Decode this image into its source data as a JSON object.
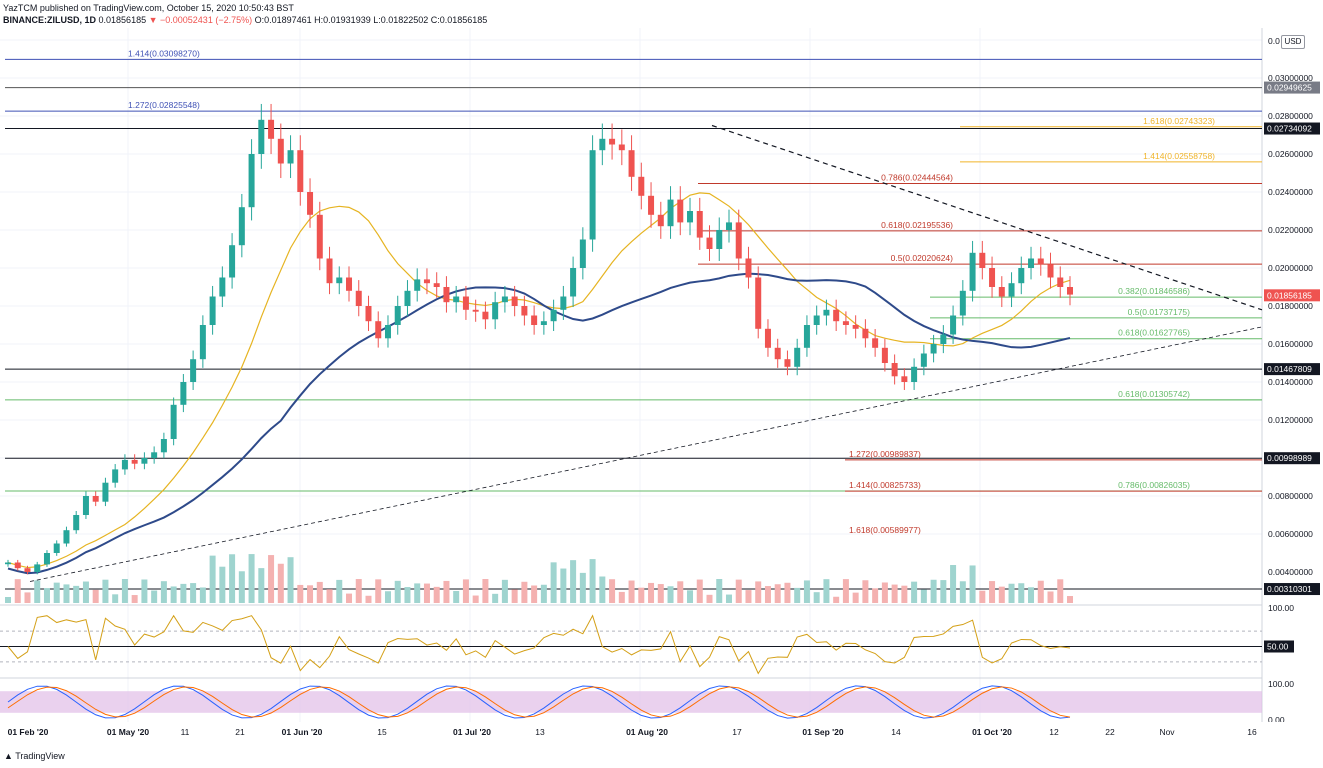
{
  "header": {
    "line1": "YazTCM published on TradingView.com, October 15, 2020 10:50:43 BST",
    "symbol": "BINANCE:ZILUSD, 1D",
    "price": "0.01856185",
    "change": "▼ −0.00052431 (−2.75%)",
    "ohlc": "O:0.01897461 H:0.01931939 L:0.01822502 C:0.01856185"
  },
  "currency_button": "USD",
  "brand": "TradingView",
  "colors": {
    "up": "#26a69a",
    "down": "#ef5350",
    "ma_yellow": "#e6b422",
    "ma_blue": "#2e4a8a",
    "rsi": "#d4a017",
    "stoch_band": "#e1bee7"
  },
  "chart_data": {
    "type": "candlestick",
    "symbol": "ZILUSD",
    "exchange": "BINANCE",
    "timeframe": "1D",
    "y_ticks": [
      "0.03000000",
      "0.02800000",
      "0.02600000",
      "0.02400000",
      "0.02200000",
      "0.02000000",
      "0.01800000",
      "0.01600000",
      "0.01400000",
      "0.01200000",
      "0.00800000",
      "0.00600000",
      "0.00400000"
    ],
    "y_top_label": "0.0",
    "x_ticks": [
      "01 Feb '20",
      "01 May '20",
      "11",
      "21",
      "01 Jun '20",
      "15",
      "01 Jul '20",
      "13",
      "01 Aug '20",
      "17",
      "01 Sep '20",
      "14",
      "01 Oct '20",
      "12",
      "22",
      "Nov",
      "16"
    ],
    "price_tags": [
      {
        "value": "0.02949625",
        "color": "#787b86"
      },
      {
        "value": "0.02734092",
        "color": "#131722"
      },
      {
        "value": "0.01856185",
        "color": "#ef5350"
      },
      {
        "value": "0.01467809",
        "color": "#131722"
      },
      {
        "value": "0.00998989",
        "color": "#131722"
      },
      {
        "value": "0.00310301",
        "color": "#131722"
      }
    ],
    "horizontal_levels": [
      {
        "value": 0.0309827,
        "color": "#3f51b5",
        "label": "1.414(0.03098270)"
      },
      {
        "value": 0.02949625,
        "color": "#555555",
        "label": ""
      },
      {
        "value": 0.02825548,
        "color": "#3f51b5",
        "label": "1.272(0.02825548)"
      },
      {
        "value": 0.02734092,
        "color": "#131722",
        "label": ""
      },
      {
        "value": 0.01467809,
        "color": "#131722",
        "label": ""
      },
      {
        "value": 0.01305742,
        "color": "#66bb6a",
        "label": ""
      },
      {
        "value": 0.00998989,
        "color": "#131722",
        "label": ""
      },
      {
        "value": 0.00826035,
        "color": "#66bb6a",
        "label": ""
      },
      {
        "value": 0.00310301,
        "color": "#131722",
        "label": ""
      }
    ],
    "fib_levels": [
      {
        "label": "1.618(0.02743323)",
        "value": 0.02743323,
        "color": "#f0b429"
      },
      {
        "label": "1.414(0.02558758)",
        "value": 0.02558758,
        "color": "#f0b429"
      },
      {
        "label": "0.786(0.02444564)",
        "value": 0.02444564,
        "color": "#c0392b"
      },
      {
        "label": "0.618(0.02195536)",
        "value": 0.02195536,
        "color": "#c0392b"
      },
      {
        "label": "0.5(0.02020624)",
        "value": 0.02020624,
        "color": "#c0392b"
      },
      {
        "label": "0.382(0.01846586)",
        "value": 0.01846586,
        "color": "#66bb6a"
      },
      {
        "label": "0.5(0.01737175)",
        "value": 0.01737175,
        "color": "#66bb6a"
      },
      {
        "label": "0.618(0.01627765)",
        "value": 0.01627765,
        "color": "#66bb6a"
      },
      {
        "label": "0.618(0.01305742)",
        "value": 0.01305742,
        "color": "#66bb6a"
      },
      {
        "label": "1.272(0.00989837)",
        "value": 0.00989837,
        "color": "#c0392b"
      },
      {
        "label": "1.414(0.00825733)",
        "value": 0.00825733,
        "color": "#c0392b"
      },
      {
        "label": "0.786(0.00826035)",
        "value": 0.00826035,
        "color": "#66bb6a"
      },
      {
        "label": "1.618(0.00589977)",
        "value": 0.00589977,
        "color": "#c0392b"
      }
    ],
    "rsi": {
      "ticks": [
        "100.00",
        "50.00"
      ],
      "current_tag": "50.00"
    },
    "stoch_rsi": {
      "ticks": [
        "100.00",
        "0.00"
      ]
    },
    "approx_close_path": [
      0.0045,
      0.0042,
      0.004,
      0.0044,
      0.005,
      0.0055,
      0.0062,
      0.007,
      0.008,
      0.0077,
      0.0087,
      0.0094,
      0.0099,
      0.0097,
      0.01,
      0.0103,
      0.011,
      0.0128,
      0.014,
      0.0152,
      0.017,
      0.0185,
      0.0195,
      0.0212,
      0.0232,
      0.026,
      0.0278,
      0.0268,
      0.0255,
      0.0262,
      0.024,
      0.0228,
      0.0205,
      0.0192,
      0.0195,
      0.0188,
      0.018,
      0.0172,
      0.0163,
      0.017,
      0.018,
      0.0188,
      0.0194,
      0.0192,
      0.019,
      0.0182,
      0.0185,
      0.0178,
      0.0177,
      0.0173,
      0.0182,
      0.0185,
      0.018,
      0.0175,
      0.017,
      0.0172,
      0.0178,
      0.0185,
      0.02,
      0.0215,
      0.0262,
      0.0268,
      0.0265,
      0.0262,
      0.0248,
      0.0238,
      0.0228,
      0.0222,
      0.0236,
      0.0224,
      0.023,
      0.0216,
      0.021,
      0.022,
      0.0224,
      0.0205,
      0.0195,
      0.0168,
      0.0158,
      0.0152,
      0.0148,
      0.0158,
      0.017,
      0.0175,
      0.0178,
      0.0172,
      0.017,
      0.0168,
      0.0163,
      0.0158,
      0.015,
      0.0143,
      0.014,
      0.0148,
      0.0155,
      0.016,
      0.0165,
      0.0175,
      0.0188,
      0.0208,
      0.02,
      0.019,
      0.0185,
      0.0192,
      0.02,
      0.0205,
      0.0202,
      0.0195,
      0.019,
      0.0186
    ]
  }
}
